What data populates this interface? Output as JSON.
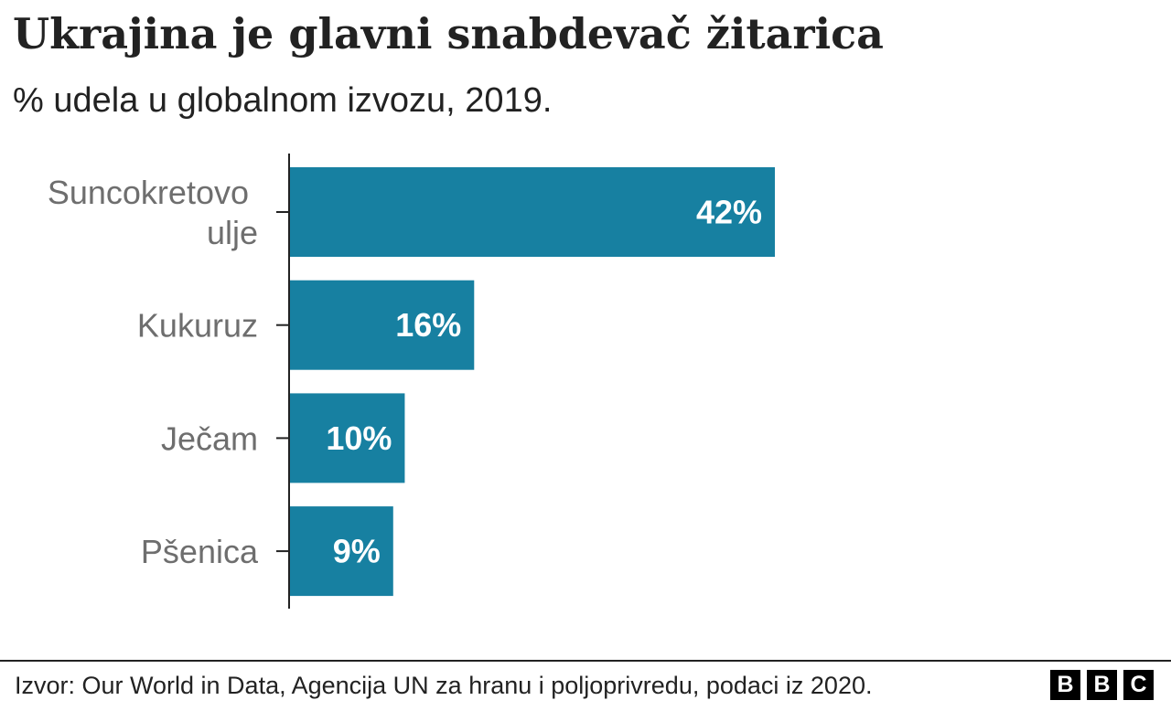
{
  "header": {
    "title": "Ukrajina je glavni snabdevač žitarica",
    "subtitle": "% udela u globalnom izvozu, 2019."
  },
  "footer": {
    "source": "Izvor: Our World in Data, Agencija UN za hranu i poljoprivredu, podaci iz 2020.",
    "logo_letters": [
      "B",
      "B",
      "C"
    ]
  },
  "colors": {
    "bar": "#1780a1",
    "axis": "#222222",
    "category_text": "#6e6e6e",
    "value_text": "#ffffff"
  },
  "chart_data": {
    "type": "bar",
    "orientation": "horizontal",
    "categories": [
      [
        "Suncokretovo",
        "ulje"
      ],
      [
        "Kukuruz"
      ],
      [
        "Ječam"
      ],
      [
        "Pšenica"
      ]
    ],
    "values": [
      42,
      16,
      10,
      9
    ],
    "value_labels": [
      "42%",
      "16%",
      "10%",
      "9%"
    ],
    "title": "Ukrajina je glavni snabdevač žitarica",
    "subtitle": "% udela u globalnom izvozu, 2019.",
    "xlabel": "",
    "ylabel": "",
    "xlim": [
      0,
      42
    ],
    "grid": false,
    "legend": "none"
  }
}
